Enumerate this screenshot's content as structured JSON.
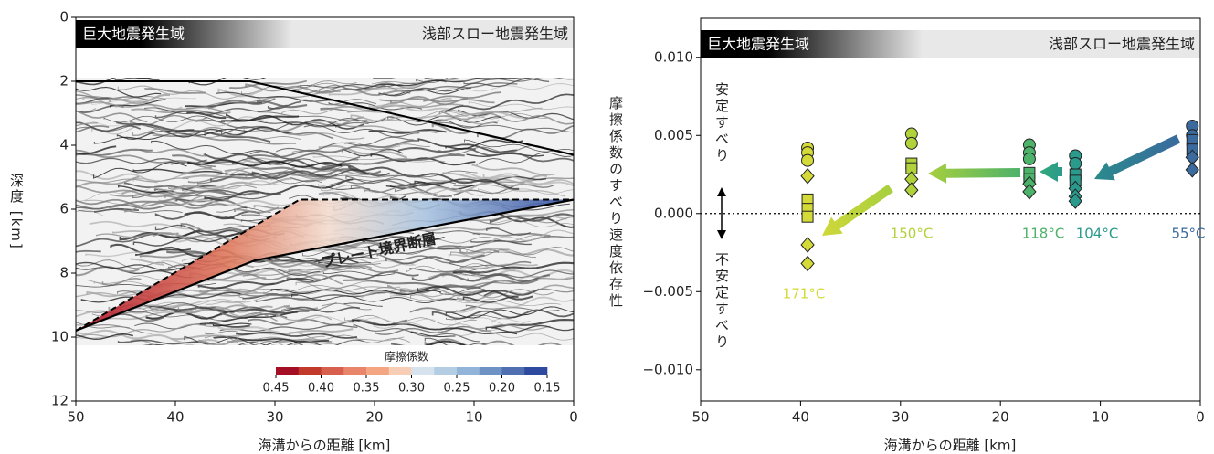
{
  "chart_data": [
    {
      "type": "section",
      "banner_left": "巨大地震発生域",
      "banner_right": "浅部スロー地震発生域",
      "annotation": "プレート境界断層",
      "xlabel": "海溝からの距離 [km]",
      "ylabel": "深度 [km]",
      "xlim": [
        50,
        0
      ],
      "xticks": [
        50,
        40,
        30,
        20,
        10,
        0
      ],
      "ylim": [
        12,
        0
      ],
      "yticks": [
        0,
        2,
        4,
        6,
        8,
        10,
        12
      ],
      "colorbar": {
        "title": "摩擦係数",
        "lim": [
          0.45,
          0.15
        ],
        "colors": [
          "#a50f25",
          "#c0392b",
          "#d6604d",
          "#e8856a",
          "#f4a582",
          "#f7cdb5",
          "#d6e2ee",
          "#b3cde3",
          "#92b4d8",
          "#6f92c4",
          "#4f6fb0",
          "#2e4a9e"
        ],
        "ticks": [
          {
            "value": 0.45,
            "label": "0.45"
          },
          {
            "value": 0.4,
            "label": "0.40"
          },
          {
            "value": 0.35,
            "label": "0.35"
          },
          {
            "value": 0.3,
            "label": "0.30"
          },
          {
            "value": 0.25,
            "label": "0.25"
          },
          {
            "value": 0.2,
            "label": "0.20"
          },
          {
            "value": 0.15,
            "label": "0.15"
          }
        ]
      }
    },
    {
      "type": "scatter",
      "banner_left": "巨大地震発生域",
      "banner_right": "浅部スロー地震発生域",
      "xlabel": "海溝からの距離 [km]",
      "ylabel": "摩擦係数のすべり速度依存性",
      "annotations": [
        "安定すべり",
        "不安定すべり"
      ],
      "xlim": [
        50,
        0
      ],
      "xticks": [
        50,
        40,
        30,
        20,
        10,
        0
      ],
      "ylim": [
        -0.012,
        0.0125
      ],
      "yticks": [
        {
          "value": 0.01,
          "label": "0.010"
        },
        {
          "value": 0.005,
          "label": "0.005"
        },
        {
          "value": 0,
          "label": "0.000"
        },
        {
          "value": -0.005,
          "label": "−0.005"
        },
        {
          "value": -0.01,
          "label": "−0.010"
        }
      ],
      "hline": 0,
      "series": [
        {
          "name": "171°C",
          "color": "#d4da38",
          "x": [
            39.3,
            39.3,
            39.3,
            39.3,
            39.3,
            39.3,
            39.3,
            39.3,
            39.3
          ],
          "values": [
            0.0042,
            0.0039,
            0.0034,
            0.0024,
            0.0009,
            0.0003,
            -0.0002,
            -0.002,
            -0.0032
          ],
          "markers": [
            "o",
            "o",
            "o",
            "D",
            "s",
            "s",
            "s",
            "D",
            "D"
          ]
        },
        {
          "name": "150°C",
          "color": "#b2d23c",
          "x": [
            28.9,
            28.9,
            28.9,
            28.9,
            28.9,
            28.9
          ],
          "values": [
            0.0051,
            0.0045,
            0.0032,
            0.0029,
            0.0022,
            0.0015
          ],
          "markers": [
            "o",
            "o",
            "s",
            "s",
            "D",
            "D"
          ]
        },
        {
          "name": "118°C",
          "color": "#4db26a",
          "x": [
            17.1,
            17.1,
            17.1,
            17.1,
            17.1,
            17.1,
            17.1
          ],
          "values": [
            0.0044,
            0.0039,
            0.0035,
            0.0026,
            0.0022,
            0.0019,
            0.0014
          ],
          "markers": [
            "o",
            "o",
            "o",
            "s",
            "s",
            "D",
            "D"
          ]
        },
        {
          "name": "104°C",
          "color": "#2a9a8c",
          "x": [
            12.5,
            12.5,
            12.5,
            12.5,
            12.5,
            12.5,
            12.5
          ],
          "values": [
            0.0037,
            0.0032,
            0.0025,
            0.0021,
            0.0016,
            0.0011,
            0.0008
          ],
          "markers": [
            "o",
            "o",
            "s",
            "s",
            "D",
            "D",
            "D"
          ]
        },
        {
          "name": "55°C",
          "color": "#3a6a9e",
          "x": [
            0.8,
            0.8,
            0.8,
            0.8,
            0.8,
            0.8
          ],
          "values": [
            0.0056,
            0.005,
            0.0047,
            0.0041,
            0.0036,
            0.0028
          ],
          "markers": [
            "o",
            "o",
            "s",
            "s",
            "D",
            "D"
          ]
        }
      ]
    }
  ]
}
